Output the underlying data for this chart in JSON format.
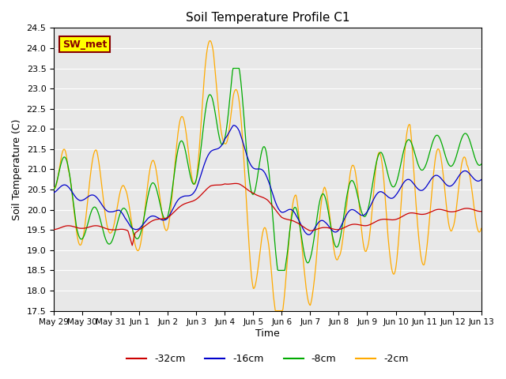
{
  "title": "Soil Temperature Profile C1",
  "xlabel": "Time",
  "ylabel": "Soil Temperature (C)",
  "ylim": [
    17.5,
    24.5
  ],
  "yticks": [
    17.5,
    18.0,
    18.5,
    19.0,
    19.5,
    20.0,
    20.5,
    21.0,
    21.5,
    22.0,
    22.5,
    23.0,
    23.5,
    24.0,
    24.5
  ],
  "xtick_labels": [
    "May 29",
    "May 30",
    "May 31",
    "Jun 1",
    "Jun 2",
    "Jun 3",
    "Jun 4",
    "Jun 5",
    "Jun 6",
    "Jun 7",
    "Jun 8",
    "Jun 9",
    "Jun 10",
    "Jun 11",
    "Jun 12",
    "Jun 13"
  ],
  "colors": {
    "-32cm": "#cc0000",
    "-16cm": "#0000cc",
    "-8cm": "#00aa00",
    "-2cm": "#ffaa00"
  },
  "legend_labels": [
    "-32cm",
    "-16cm",
    "-8cm",
    "-2cm"
  ],
  "annotation_text": "SW_met",
  "annotation_bg": "#ffff00",
  "annotation_border": "#880000",
  "bg_color": "#e8e8e8"
}
